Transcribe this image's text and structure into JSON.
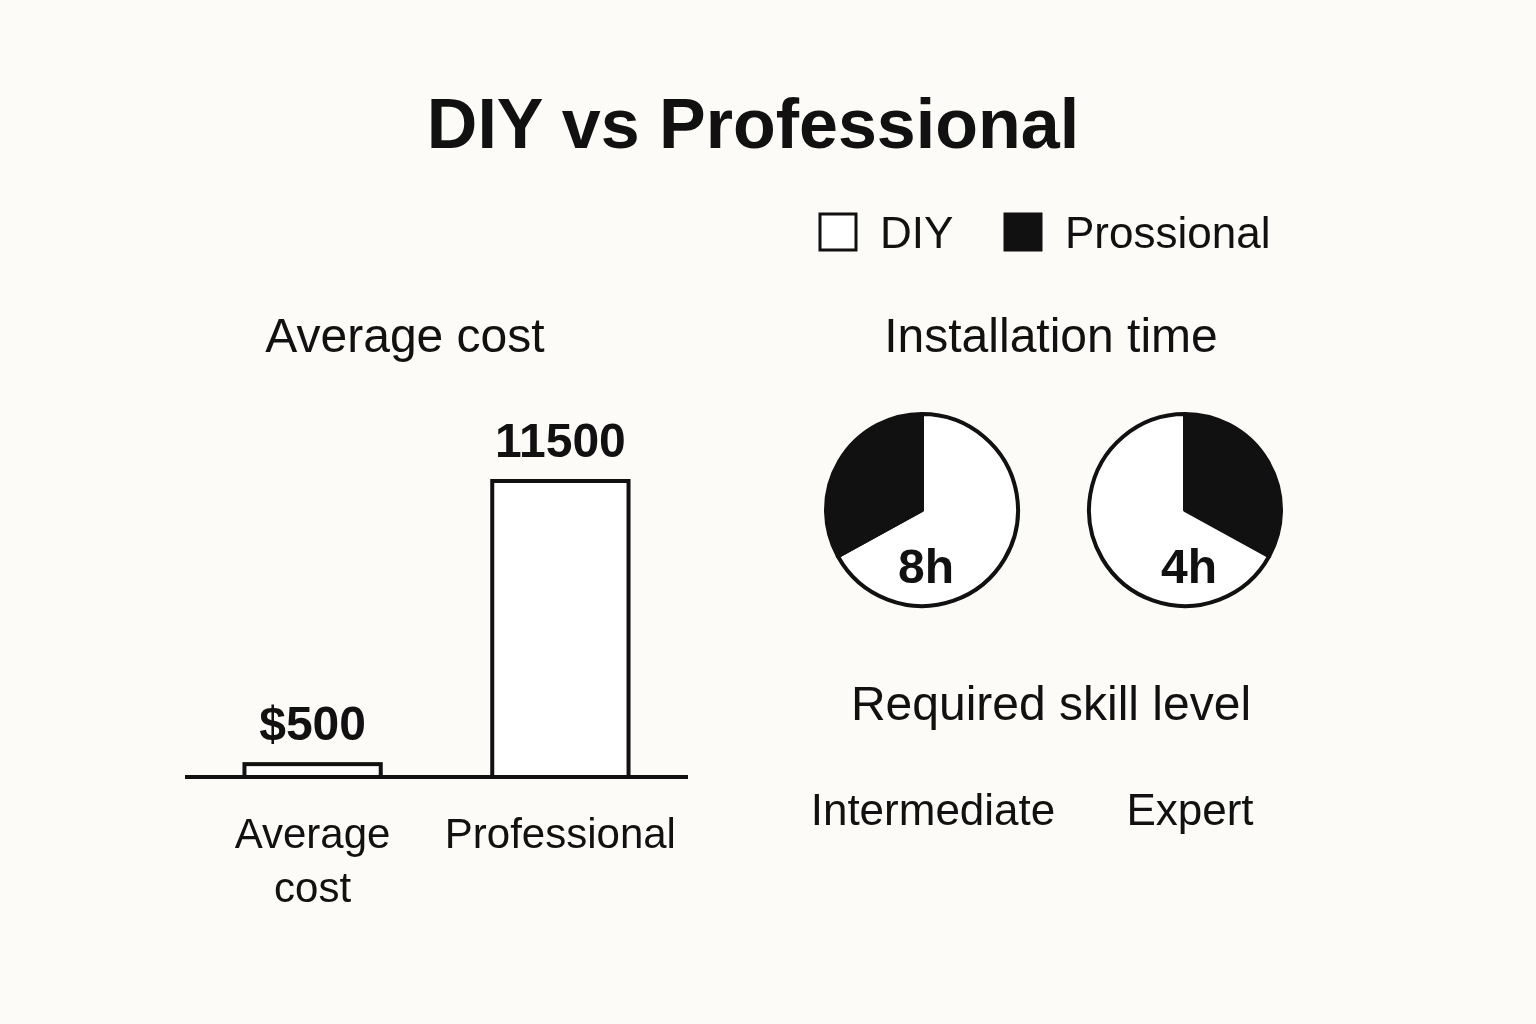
{
  "chart_data": [
    {
      "type": "bar",
      "title": "DIY vs Professional",
      "subtitle": "Average cost",
      "categories": [
        "Average cost",
        "Professional"
      ],
      "values": [
        500,
        11500
      ],
      "color": "#ffffff",
      "value_labels": [
        "$500",
        "11500"
      ]
    },
    {
      "type": "pie",
      "title": "Installation time",
      "categories": [
        "DIY",
        "Prossional"
      ],
      "values": [
        67,
        33
      ],
      "colors": [
        "#ffffff",
        "#111111"
      ],
      "legend": "top",
      "annotations": [
        "8h"
      ]
    },
    {
      "type": "pie",
      "categories": [
        null,
        null
      ],
      "values": [
        33,
        67
      ],
      "colors": [
        "#111111",
        "#ffffff"
      ],
      "annotations": [
        "4h"
      ]
    },
    {
      "type": "other",
      "title": "Required skill level",
      "annotations": [
        "Intermediate",
        "Expert"
      ]
    }
  ]
}
